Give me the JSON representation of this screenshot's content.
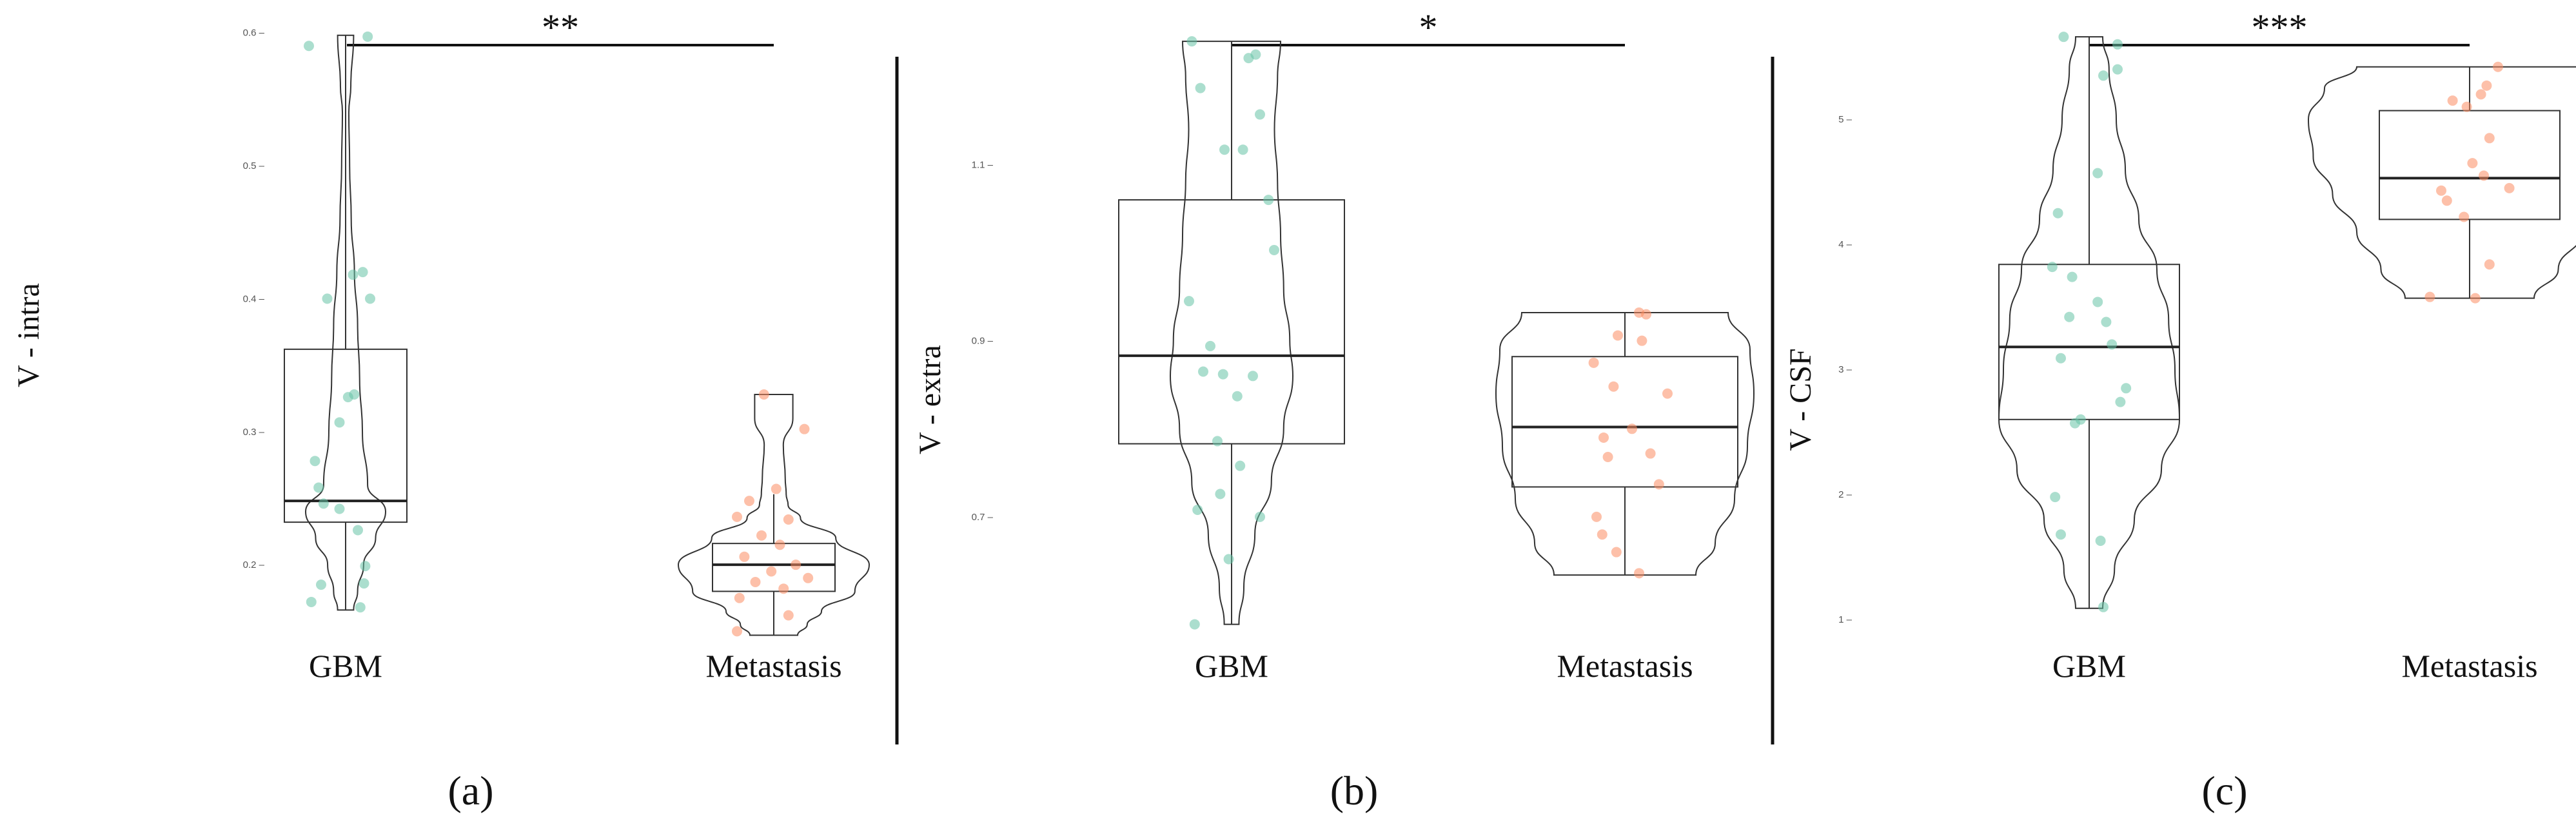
{
  "chart_data": [
    {
      "panel": "(a)",
      "type": "violin-box",
      "ylabel": "V - intra",
      "categories": [
        "GBM",
        "Metastasis"
      ],
      "significance": "**",
      "ylim": [
        0.14,
        0.61
      ],
      "yticks": [
        0.2,
        0.3,
        0.4,
        0.5,
        0.6
      ],
      "ytick_labels": [
        "0.2",
        "0.3",
        "0.4",
        "0.5",
        "0.6"
      ],
      "groups": [
        {
          "name": "GBM",
          "color": "#66c2a5",
          "box": {
            "q1": 0.232,
            "median": 0.248,
            "q3": 0.362,
            "whisker_low": 0.166,
            "whisker_high": 0.598
          },
          "violin": {
            "y": [
              0.166,
              0.18,
              0.2,
              0.22,
              0.24,
              0.26,
              0.3,
              0.34,
              0.38,
              0.42,
              0.46,
              0.5,
              0.54,
              0.56,
              0.598
            ],
            "w": [
              0.2,
              0.3,
              0.45,
              0.75,
              1.0,
              0.55,
              0.42,
              0.35,
              0.3,
              0.22,
              0.14,
              0.1,
              0.08,
              0.13,
              0.2
            ]
          },
          "points": [
            {
              "x": -0.3,
              "y": 0.59
            },
            {
              "x": 0.18,
              "y": 0.597
            },
            {
              "x": 0.14,
              "y": 0.42
            },
            {
              "x": 0.06,
              "y": 0.418
            },
            {
              "x": -0.15,
              "y": 0.4
            },
            {
              "x": 0.2,
              "y": 0.4
            },
            {
              "x": 0.07,
              "y": 0.328
            },
            {
              "x": 0.02,
              "y": 0.326
            },
            {
              "x": -0.05,
              "y": 0.307
            },
            {
              "x": -0.25,
              "y": 0.278
            },
            {
              "x": -0.22,
              "y": 0.258
            },
            {
              "x": -0.18,
              "y": 0.246
            },
            {
              "x": -0.05,
              "y": 0.242
            },
            {
              "x": 0.1,
              "y": 0.226
            },
            {
              "x": 0.16,
              "y": 0.199
            },
            {
              "x": -0.2,
              "y": 0.185
            },
            {
              "x": -0.28,
              "y": 0.172
            },
            {
              "x": 0.12,
              "y": 0.168
            },
            {
              "x": 0.15,
              "y": 0.186
            }
          ]
        },
        {
          "name": "Metastasis",
          "color": "#fc8d62",
          "box": {
            "q1": 0.18,
            "median": 0.2,
            "q3": 0.216,
            "whisker_low": 0.147,
            "whisker_high": 0.253
          },
          "violin": {
            "y": [
              0.147,
              0.155,
              0.165,
              0.18,
              0.2,
              0.22,
              0.235,
              0.245,
              0.253,
              0.265,
              0.29,
              0.31,
              0.328
            ],
            "w": [
              0.25,
              0.35,
              0.5,
              0.85,
              1.0,
              0.65,
              0.28,
              0.15,
              0.13,
              0.12,
              0.1,
              0.2,
              0.2
            ]
          },
          "points": [
            {
              "x": -0.08,
              "y": 0.328
            },
            {
              "x": 0.25,
              "y": 0.302
            },
            {
              "x": 0.02,
              "y": 0.257
            },
            {
              "x": -0.2,
              "y": 0.248
            },
            {
              "x": -0.3,
              "y": 0.236
            },
            {
              "x": 0.12,
              "y": 0.234
            },
            {
              "x": -0.1,
              "y": 0.222
            },
            {
              "x": 0.05,
              "y": 0.215
            },
            {
              "x": -0.24,
              "y": 0.206
            },
            {
              "x": 0.18,
              "y": 0.2
            },
            {
              "x": -0.02,
              "y": 0.195
            },
            {
              "x": 0.28,
              "y": 0.19
            },
            {
              "x": -0.15,
              "y": 0.187
            },
            {
              "x": 0.08,
              "y": 0.182
            },
            {
              "x": -0.28,
              "y": 0.175
            },
            {
              "x": 0.12,
              "y": 0.162
            },
            {
              "x": -0.3,
              "y": 0.15
            }
          ]
        }
      ]
    },
    {
      "panel": "(b)",
      "type": "violin-box",
      "ylabel": "V - extra",
      "categories": [
        "GBM",
        "Metastasis"
      ],
      "significance": "*",
      "ylim": [
        0.555,
        1.265
      ],
      "yticks": [
        0.7,
        0.9,
        1.1
      ],
      "ytick_labels": [
        "0.7",
        "0.9",
        "1.1"
      ],
      "groups": [
        {
          "name": "GBM",
          "color": "#66c2a5",
          "box": {
            "q1": 0.783,
            "median": 0.883,
            "q3": 1.06,
            "whisker_low": 0.578,
            "whisker_high": 1.24
          },
          "violin": {
            "y": [
              0.578,
              0.62,
              0.68,
              0.74,
              0.8,
              0.86,
              0.9,
              0.96,
              1.02,
              1.08,
              1.14,
              1.2,
              1.24
            ],
            "w": [
              0.12,
              0.2,
              0.38,
              0.65,
              0.85,
              1.0,
              0.95,
              0.85,
              0.8,
              0.75,
              0.7,
              0.75,
              0.8
            ]
          },
          "points": [
            {
              "x": -0.28,
              "y": 1.24
            },
            {
              "x": 0.17,
              "y": 1.225
            },
            {
              "x": 0.12,
              "y": 1.221
            },
            {
              "x": -0.22,
              "y": 1.187
            },
            {
              "x": 0.2,
              "y": 1.157
            },
            {
              "x": -0.05,
              "y": 1.117
            },
            {
              "x": 0.08,
              "y": 1.117
            },
            {
              "x": 0.26,
              "y": 1.06
            },
            {
              "x": 0.3,
              "y": 1.003
            },
            {
              "x": -0.3,
              "y": 0.945
            },
            {
              "x": -0.15,
              "y": 0.894
            },
            {
              "x": -0.2,
              "y": 0.865
            },
            {
              "x": -0.06,
              "y": 0.862
            },
            {
              "x": 0.15,
              "y": 0.86
            },
            {
              "x": 0.04,
              "y": 0.837
            },
            {
              "x": -0.1,
              "y": 0.786
            },
            {
              "x": 0.06,
              "y": 0.758
            },
            {
              "x": -0.08,
              "y": 0.726
            },
            {
              "x": -0.24,
              "y": 0.708
            },
            {
              "x": 0.2,
              "y": 0.7
            },
            {
              "x": -0.02,
              "y": 0.652
            },
            {
              "x": -0.26,
              "y": 0.578
            }
          ]
        },
        {
          "name": "Metastasis",
          "color": "#fc8d62",
          "box": {
            "q1": 0.734,
            "median": 0.802,
            "q3": 0.882,
            "whisker_low": 0.634,
            "whisker_high": 0.932
          },
          "violin": {
            "y": [
              0.634,
              0.67,
              0.72,
              0.78,
              0.84,
              0.89,
              0.932
            ],
            "w": [
              0.55,
              0.7,
              0.85,
              0.95,
              1.0,
              0.97,
              0.8
            ]
          },
          "points": [
            {
              "x": 0.1,
              "y": 0.932
            },
            {
              "x": 0.15,
              "y": 0.93
            },
            {
              "x": -0.05,
              "y": 0.906
            },
            {
              "x": 0.12,
              "y": 0.9
            },
            {
              "x": -0.22,
              "y": 0.875
            },
            {
              "x": -0.08,
              "y": 0.848
            },
            {
              "x": 0.3,
              "y": 0.84
            },
            {
              "x": 0.05,
              "y": 0.8
            },
            {
              "x": -0.15,
              "y": 0.79
            },
            {
              "x": 0.18,
              "y": 0.772
            },
            {
              "x": -0.12,
              "y": 0.768
            },
            {
              "x": 0.24,
              "y": 0.737
            },
            {
              "x": -0.2,
              "y": 0.7
            },
            {
              "x": -0.16,
              "y": 0.68
            },
            {
              "x": -0.06,
              "y": 0.66
            },
            {
              "x": 0.1,
              "y": 0.636
            }
          ]
        }
      ]
    },
    {
      "panel": "(c)",
      "type": "violin-box",
      "ylabel": "V - CSF",
      "categories": [
        "GBM",
        "Metastasis"
      ],
      "significance": "***",
      "ylim": [
        0.8,
        5.8
      ],
      "yticks": [
        1,
        2,
        3,
        4,
        5
      ],
      "ytick_labels": [
        "1",
        "2",
        "3",
        "4",
        "5"
      ],
      "groups": [
        {
          "name": "GBM",
          "color": "#66c2a5",
          "box": {
            "q1": 2.6,
            "median": 3.18,
            "q3": 3.84,
            "whisker_low": 1.09,
            "whisker_high": 5.66
          },
          "violin": {
            "y": [
              1.09,
              1.4,
              1.8,
              2.2,
              2.6,
              3.0,
              3.4,
              3.8,
              4.2,
              4.6,
              5.0,
              5.4,
              5.66
            ],
            "w": [
              0.15,
              0.28,
              0.5,
              0.8,
              1.0,
              0.95,
              0.88,
              0.75,
              0.55,
              0.4,
              0.3,
              0.22,
              0.15
            ]
          },
          "points": [
            {
              "x": -0.18,
              "y": 5.66
            },
            {
              "x": 0.2,
              "y": 5.6
            },
            {
              "x": 0.2,
              "y": 5.4
            },
            {
              "x": 0.1,
              "y": 5.35
            },
            {
              "x": 0.06,
              "y": 4.57
            },
            {
              "x": -0.22,
              "y": 4.25
            },
            {
              "x": -0.26,
              "y": 3.82
            },
            {
              "x": -0.12,
              "y": 3.74
            },
            {
              "x": 0.06,
              "y": 3.54
            },
            {
              "x": -0.14,
              "y": 3.42
            },
            {
              "x": 0.12,
              "y": 3.38
            },
            {
              "x": 0.16,
              "y": 3.2
            },
            {
              "x": -0.2,
              "y": 3.09
            },
            {
              "x": 0.26,
              "y": 2.85
            },
            {
              "x": 0.22,
              "y": 2.74
            },
            {
              "x": -0.06,
              "y": 2.6
            },
            {
              "x": -0.1,
              "y": 2.57
            },
            {
              "x": -0.24,
              "y": 1.98
            },
            {
              "x": -0.2,
              "y": 1.68
            },
            {
              "x": 0.08,
              "y": 1.63
            },
            {
              "x": 0.1,
              "y": 1.1
            }
          ]
        },
        {
          "name": "Metastasis",
          "color": "#fc8d62",
          "box": {
            "q1": 4.2,
            "median": 4.53,
            "q3": 5.07,
            "whisker_low": 3.57,
            "whisker_high": 5.42
          },
          "violin": {
            "y": [
              3.57,
              3.8,
              4.1,
              4.4,
              4.7,
              5.0,
              5.25,
              5.42
            ],
            "w": [
              0.4,
              0.55,
              0.7,
              0.85,
              0.97,
              1.0,
              0.9,
              0.7
            ]
          },
          "points": [
            {
              "x": 0.2,
              "y": 5.42
            },
            {
              "x": 0.12,
              "y": 5.27
            },
            {
              "x": 0.08,
              "y": 5.2
            },
            {
              "x": -0.12,
              "y": 5.15
            },
            {
              "x": -0.02,
              "y": 5.1
            },
            {
              "x": 0.14,
              "y": 4.85
            },
            {
              "x": 0.02,
              "y": 4.65
            },
            {
              "x": 0.1,
              "y": 4.55
            },
            {
              "x": 0.28,
              "y": 4.45
            },
            {
              "x": -0.2,
              "y": 4.43
            },
            {
              "x": -0.16,
              "y": 4.35
            },
            {
              "x": -0.04,
              "y": 4.22
            },
            {
              "x": 0.14,
              "y": 3.84
            },
            {
              "x": -0.28,
              "y": 3.58
            },
            {
              "x": 0.04,
              "y": 3.57
            }
          ]
        }
      ]
    }
  ]
}
